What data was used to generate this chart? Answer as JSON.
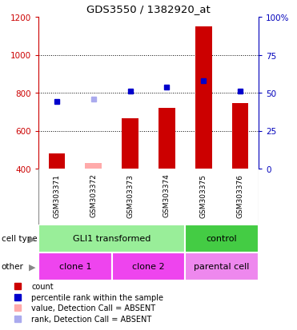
{
  "title": "GDS3550 / 1382920_at",
  "samples": [
    "GSM303371",
    "GSM303372",
    "GSM303373",
    "GSM303374",
    "GSM303375",
    "GSM303376"
  ],
  "counts": [
    480,
    430,
    665,
    720,
    1150,
    745
  ],
  "counts_absent": [
    false,
    true,
    false,
    false,
    false,
    false
  ],
  "percentile_ranks": [
    755,
    765,
    810,
    830,
    865,
    810
  ],
  "percentile_ranks_absent": [
    false,
    true,
    false,
    false,
    false,
    false
  ],
  "ylim_left": [
    400,
    1200
  ],
  "ylim_right": [
    0,
    100
  ],
  "yticks_left": [
    400,
    600,
    800,
    1000,
    1200
  ],
  "yticks_right": [
    0,
    25,
    50,
    75,
    100
  ],
  "bar_color": "#cc0000",
  "bar_color_absent": "#ffaaaa",
  "dot_color": "#0000cc",
  "dot_color_absent": "#aaaaee",
  "cell_type_groups": [
    {
      "label": "GLI1 transformed",
      "start": 0,
      "end": 4,
      "color": "#99ee99"
    },
    {
      "label": "control",
      "start": 4,
      "end": 6,
      "color": "#44cc44"
    }
  ],
  "other_groups": [
    {
      "label": "clone 1",
      "start": 0,
      "end": 2,
      "color": "#ee44ee"
    },
    {
      "label": "clone 2",
      "start": 2,
      "end": 4,
      "color": "#ee44ee"
    },
    {
      "label": "parental cell",
      "start": 4,
      "end": 6,
      "color": "#ee88ee"
    }
  ],
  "legend_items": [
    {
      "label": "count",
      "color": "#cc0000"
    },
    {
      "label": "percentile rank within the sample",
      "color": "#0000cc"
    },
    {
      "label": "value, Detection Call = ABSENT",
      "color": "#ffaaaa"
    },
    {
      "label": "rank, Detection Call = ABSENT",
      "color": "#aaaaee"
    }
  ],
  "left_color": "#cc0000",
  "right_color": "#0000bb",
  "bg_color": "#ffffff",
  "sample_bg_color": "#cccccc",
  "plot_bg_color": "#ffffff"
}
